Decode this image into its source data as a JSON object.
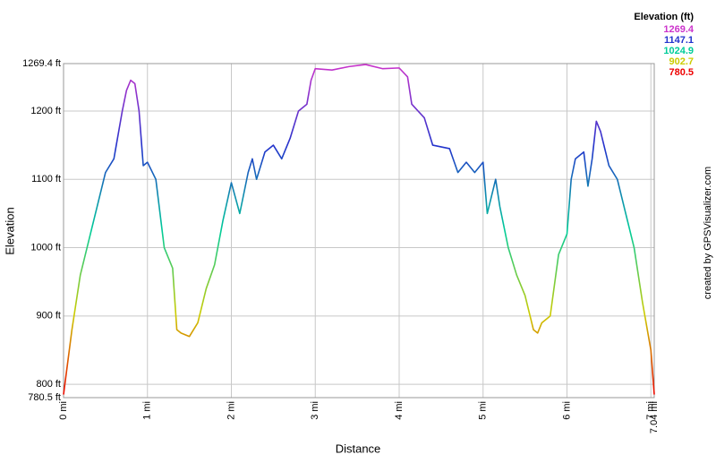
{
  "chart_data": {
    "type": "line",
    "title": "Elevation (ft)",
    "x_label": "Distance",
    "y_label": "Elevation",
    "credit": "created by GPSVisualizer.com",
    "grid": true,
    "legend_position": "top-right",
    "legend": [
      {
        "value": 1269.4,
        "color": "#cc33cc"
      },
      {
        "value": 1147.1,
        "color": "#2233cc"
      },
      {
        "value": 1024.9,
        "color": "#00cc99"
      },
      {
        "value": 902.7,
        "color": "#cccc00"
      },
      {
        "value": 780.5,
        "color": "#ee0000"
      }
    ],
    "xlim": [
      0,
      7.04
    ],
    "ylim": [
      780.5,
      1269.4
    ],
    "xticks": [
      {
        "value": 0,
        "label": "0 mi"
      },
      {
        "value": 1,
        "label": "1 mi"
      },
      {
        "value": 2,
        "label": "2 mi"
      },
      {
        "value": 3,
        "label": "3 mi"
      },
      {
        "value": 4,
        "label": "4 mi"
      },
      {
        "value": 5,
        "label": "5 mi"
      },
      {
        "value": 6,
        "label": "6 mi"
      },
      {
        "value": 7,
        "label": "7 mi"
      },
      {
        "value": 7.04,
        "label": "7.04 mi"
      }
    ],
    "yticks": [
      {
        "value": 780.5,
        "label": "780.5 ft"
      },
      {
        "value": 800,
        "label": "800 ft"
      },
      {
        "value": 900,
        "label": "900 ft"
      },
      {
        "value": 1000,
        "label": "1000 ft"
      },
      {
        "value": 1100,
        "label": "1100 ft"
      },
      {
        "value": 1200,
        "label": "1200 ft"
      },
      {
        "value": 1269.4,
        "label": "1269.4 ft"
      }
    ],
    "x": [
      0,
      0.1,
      0.2,
      0.3,
      0.4,
      0.5,
      0.6,
      0.7,
      0.75,
      0.8,
      0.85,
      0.9,
      0.95,
      1.0,
      1.1,
      1.15,
      1.2,
      1.3,
      1.35,
      1.4,
      1.5,
      1.6,
      1.7,
      1.8,
      1.9,
      2.0,
      2.1,
      2.2,
      2.25,
      2.3,
      2.4,
      2.5,
      2.6,
      2.7,
      2.8,
      2.9,
      2.95,
      3.0,
      3.2,
      3.4,
      3.6,
      3.8,
      4.0,
      4.1,
      4.15,
      4.3,
      4.4,
      4.6,
      4.7,
      4.8,
      4.9,
      5.0,
      5.05,
      5.15,
      5.2,
      5.3,
      5.4,
      5.5,
      5.6,
      5.65,
      5.7,
      5.8,
      5.9,
      6.0,
      6.05,
      6.1,
      6.2,
      6.25,
      6.3,
      6.35,
      6.4,
      6.5,
      6.6,
      6.7,
      6.8,
      6.9,
      7.0,
      7.04
    ],
    "values": [
      785,
      880,
      960,
      1010,
      1060,
      1110,
      1130,
      1200,
      1230,
      1245,
      1240,
      1200,
      1120,
      1125,
      1100,
      1050,
      1000,
      970,
      880,
      875,
      870,
      890,
      940,
      975,
      1040,
      1095,
      1050,
      1110,
      1130,
      1100,
      1140,
      1150,
      1130,
      1160,
      1200,
      1210,
      1245,
      1262,
      1260,
      1265,
      1268,
      1262,
      1263,
      1250,
      1210,
      1190,
      1150,
      1145,
      1110,
      1125,
      1110,
      1125,
      1050,
      1100,
      1060,
      1000,
      960,
      930,
      880,
      875,
      890,
      900,
      990,
      1020,
      1100,
      1130,
      1140,
      1090,
      1130,
      1185,
      1170,
      1120,
      1100,
      1050,
      1000,
      920,
      850,
      785
    ]
  }
}
